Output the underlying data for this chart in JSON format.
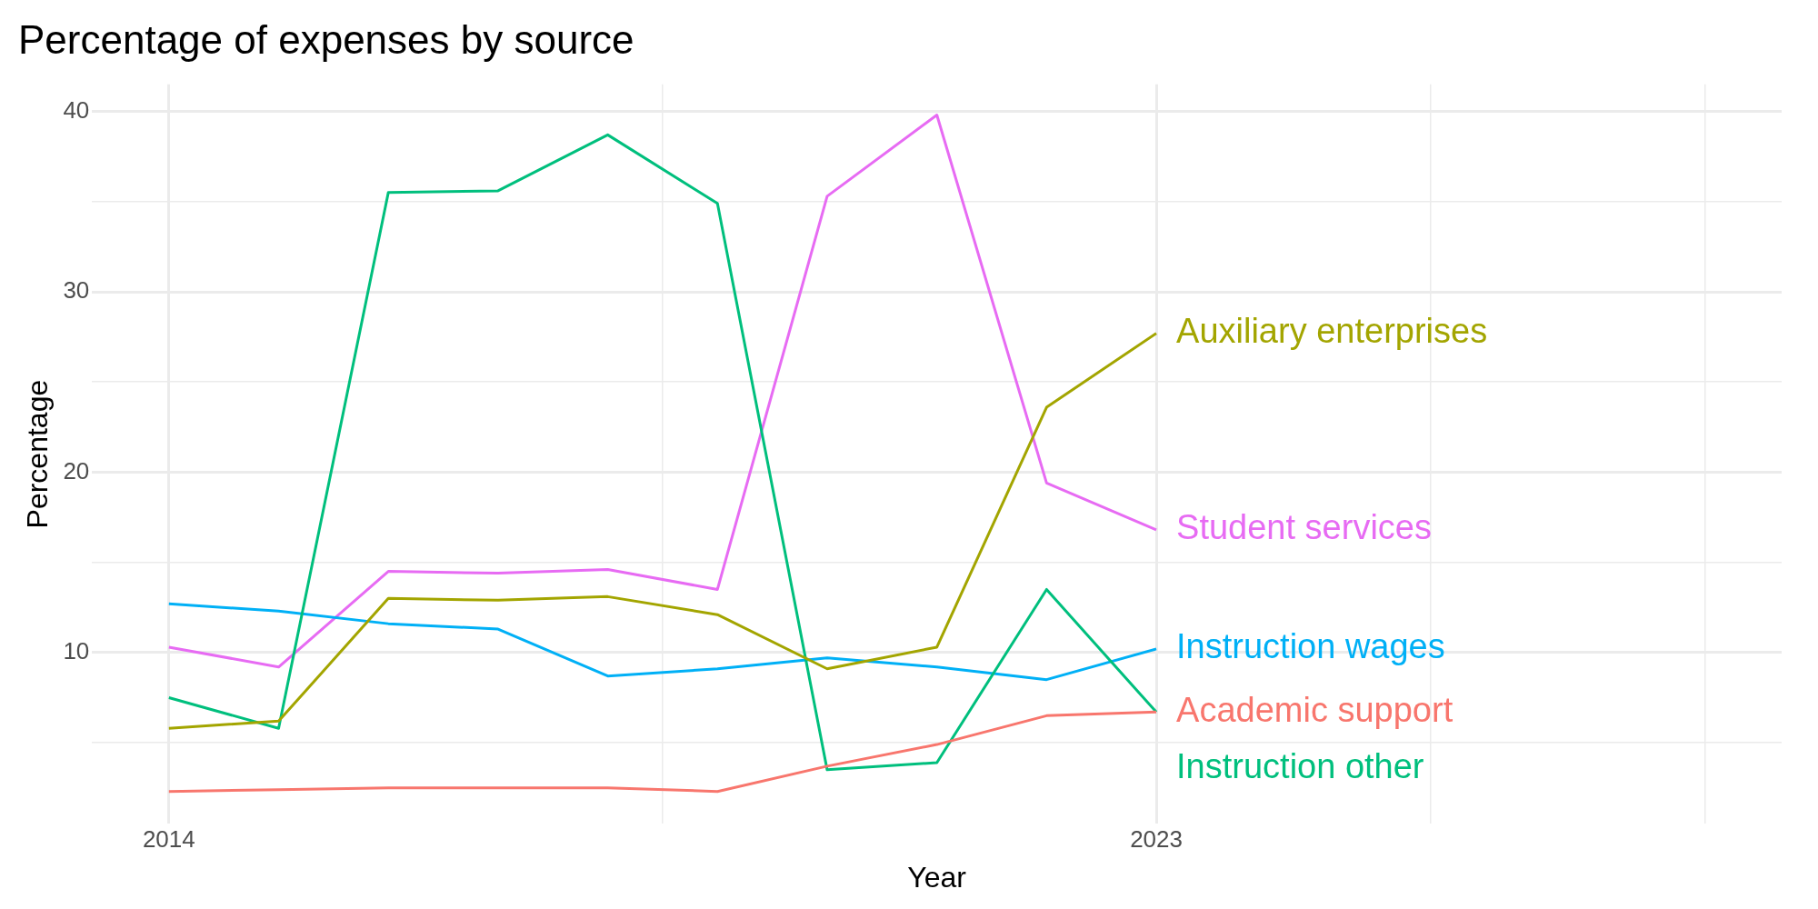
{
  "chart_data": {
    "type": "line",
    "title": "Percentage of expenses by source",
    "xlabel": "Year",
    "ylabel": "Percentage",
    "x": [
      2014,
      2015,
      2016,
      2017,
      2018,
      2019,
      2020,
      2021,
      2022,
      2023
    ],
    "series": [
      {
        "name": "Academic support",
        "color": "#f8766d",
        "values": [
          2.3,
          2.4,
          2.5,
          2.5,
          2.5,
          2.3,
          3.7,
          4.9,
          6.5,
          6.7
        ]
      },
      {
        "name": "Auxiliary enterprises",
        "color": "#a3a500",
        "values": [
          5.8,
          6.2,
          13.0,
          12.9,
          13.1,
          12.1,
          9.1,
          10.3,
          23.6,
          27.7
        ]
      },
      {
        "name": "Instruction other",
        "color": "#00bf7d",
        "values": [
          7.5,
          5.8,
          35.5,
          35.6,
          38.7,
          34.9,
          3.5,
          3.9,
          13.5,
          6.7
        ]
      },
      {
        "name": "Instruction wages",
        "color": "#00b0f6",
        "values": [
          12.7,
          12.3,
          11.6,
          11.3,
          8.7,
          9.1,
          9.7,
          9.2,
          8.5,
          10.2
        ]
      },
      {
        "name": "Student services",
        "color": "#e76bf3",
        "values": [
          10.3,
          9.2,
          14.5,
          14.4,
          14.6,
          13.5,
          35.3,
          39.8,
          19.4,
          16.8
        ]
      }
    ],
    "xlim": [
      2013.3,
      2028.7
    ],
    "xticks": [
      2014,
      {
        "value": 2018.5,
        "label": null
      },
      2023,
      {
        "value": 2025.5,
        "label": null
      },
      {
        "value": 2028,
        "label": null
      }
    ],
    "ylim": [
      0.5,
      41.5
    ],
    "yticks": [
      {
        "value": 5,
        "label": null
      },
      10,
      {
        "value": 15,
        "label": null
      },
      20,
      {
        "value": 25,
        "label": null
      },
      30,
      {
        "value": 35,
        "label": null
      },
      40
    ],
    "grid": true,
    "legend": false,
    "marker": "none",
    "line_style": "solid"
  }
}
